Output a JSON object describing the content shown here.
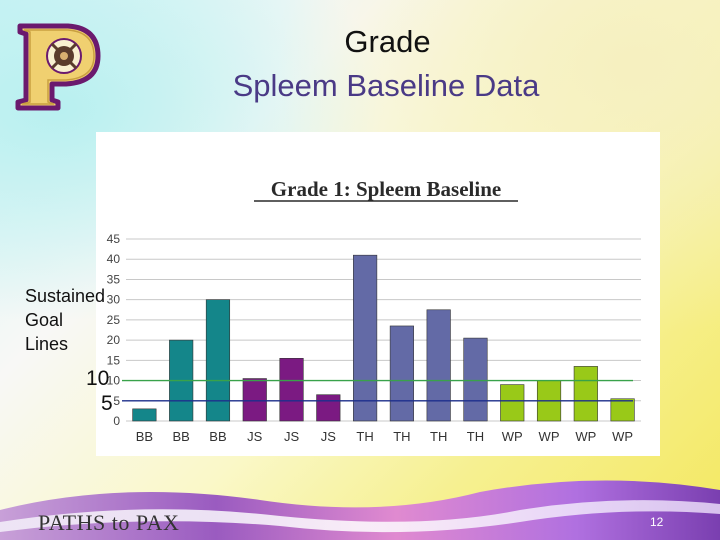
{
  "slide": {
    "title_line1": "Grade",
    "title_line2": "Spleem Baseline Data",
    "side_label_lines": [
      "Sustained",
      "Goal",
      "Lines"
    ],
    "goal_value_high": "10",
    "goal_value_low": "5",
    "footer_brand": "PATHS to PAX",
    "page_number": "12"
  },
  "chart_data": {
    "type": "bar",
    "title": "Grade 1: Spleem Baseline",
    "xlabel": "",
    "ylabel": "",
    "ylim": [
      0,
      45
    ],
    "yticks": [
      0,
      5,
      10,
      15,
      20,
      25,
      30,
      35,
      40,
      45
    ],
    "grid": true,
    "categories": [
      "BB",
      "BB",
      "BB",
      "JS",
      "JS",
      "JS",
      "TH",
      "TH",
      "TH",
      "TH",
      "WP",
      "WP",
      "WP",
      "WP"
    ],
    "values": [
      3,
      20,
      30,
      10.5,
      15.5,
      6.5,
      41,
      23.5,
      27.5,
      20.5,
      9,
      10,
      13.5,
      5.5
    ],
    "bar_colors": [
      "#14868a",
      "#14868a",
      "#14868a",
      "#7b1a82",
      "#7b1a82",
      "#7b1a82",
      "#636aa6",
      "#636aa6",
      "#636aa6",
      "#636aa6",
      "#99c918",
      "#99c918",
      "#99c918",
      "#99c918"
    ],
    "goal_lines": [
      {
        "value": 10,
        "color": "#39a24a"
      },
      {
        "value": 5,
        "color": "#1d2f8c"
      }
    ]
  }
}
